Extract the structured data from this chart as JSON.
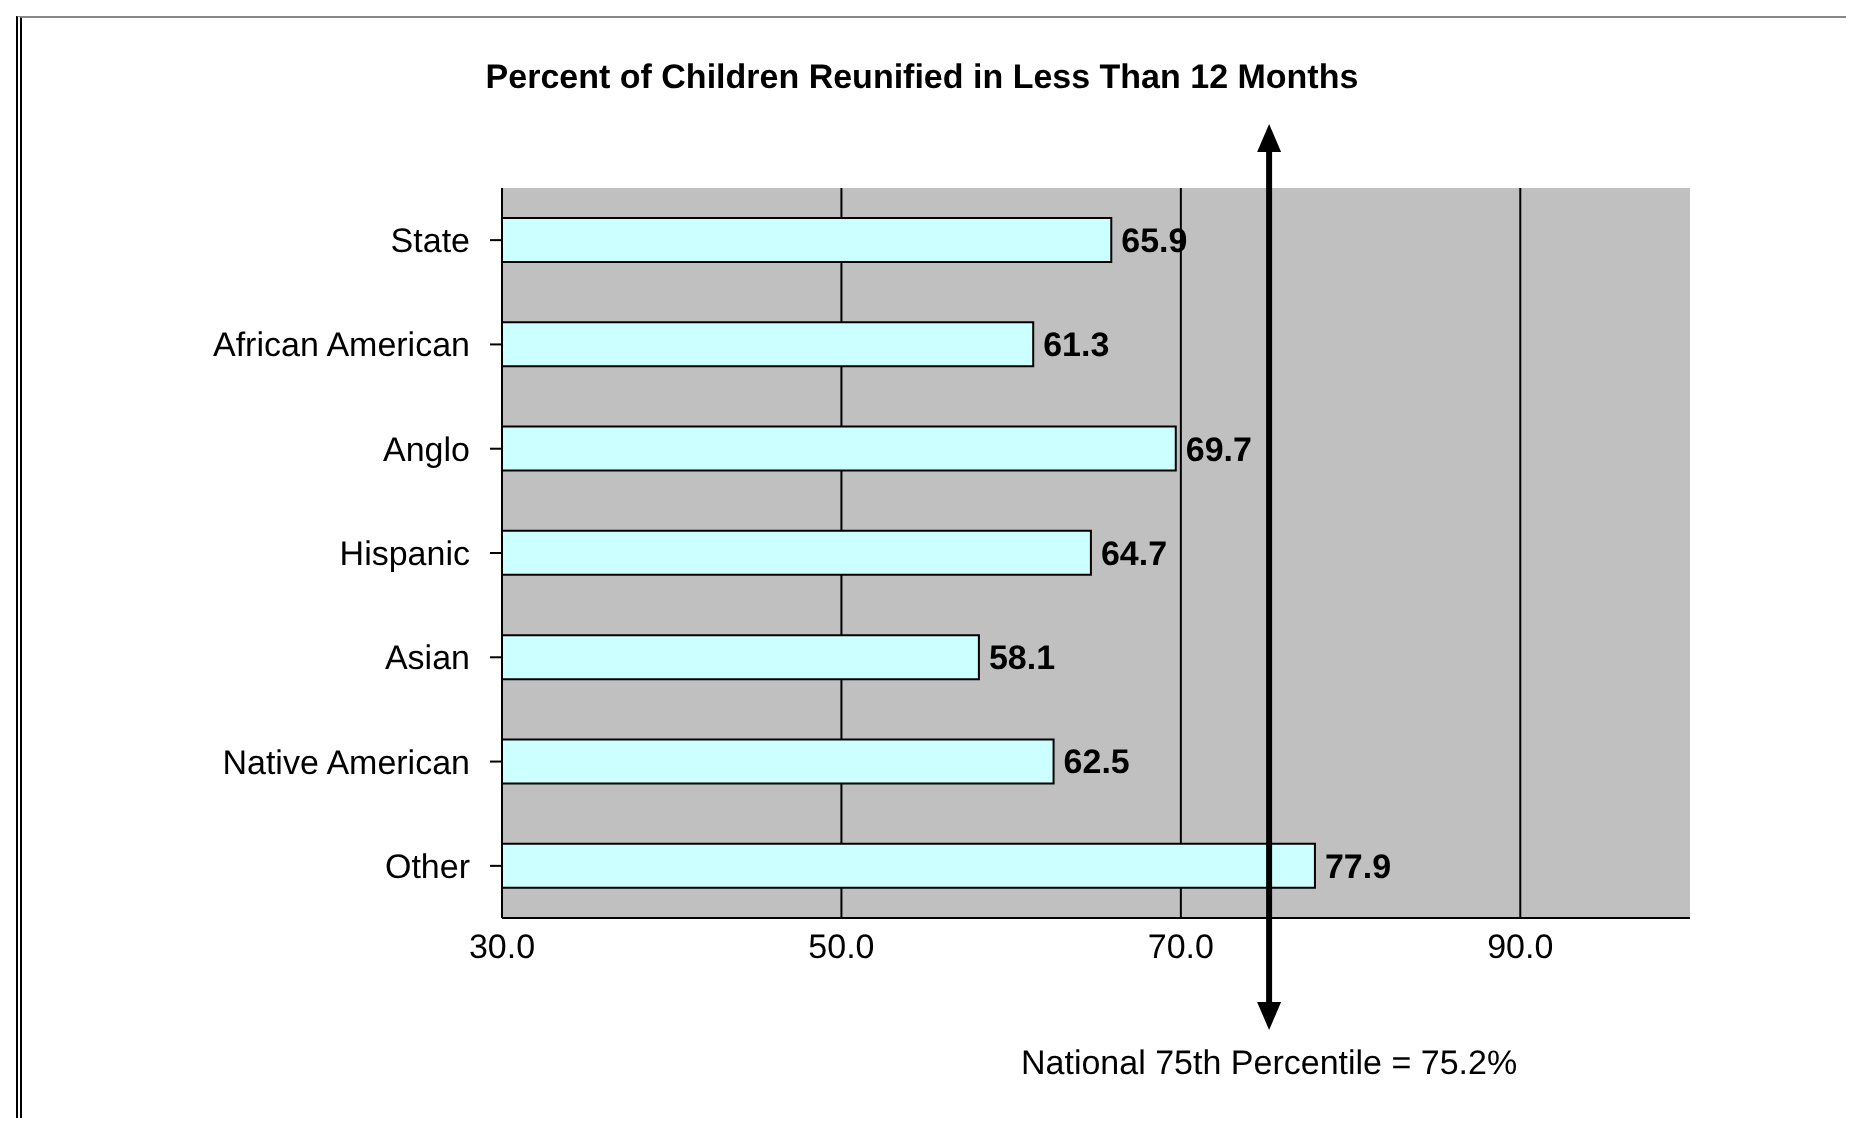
{
  "chart_data": {
    "type": "bar",
    "orientation": "horizontal",
    "title": "Percent of Children Reunified in Less Than 12 Months",
    "categories": [
      "State",
      "African American",
      "Anglo",
      "Hispanic",
      "Asian",
      "Native American",
      "Other"
    ],
    "values": [
      65.9,
      61.3,
      69.7,
      64.7,
      58.1,
      62.5,
      77.9
    ],
    "color": "#ccffff",
    "data_labels": true,
    "xlim": [
      30,
      100
    ],
    "xticks": [
      {
        "value": 30,
        "label": "30.0"
      },
      {
        "value": 50,
        "label": "50.0"
      },
      {
        "value": 70,
        "label": "70.0"
      },
      {
        "value": 90,
        "label": "90.0"
      }
    ],
    "grid": "x",
    "ref_lines": [
      {
        "axis": "x",
        "value": 75.2,
        "label": "National 75th Percentile = 75.2%",
        "color": "#000000"
      }
    ]
  }
}
